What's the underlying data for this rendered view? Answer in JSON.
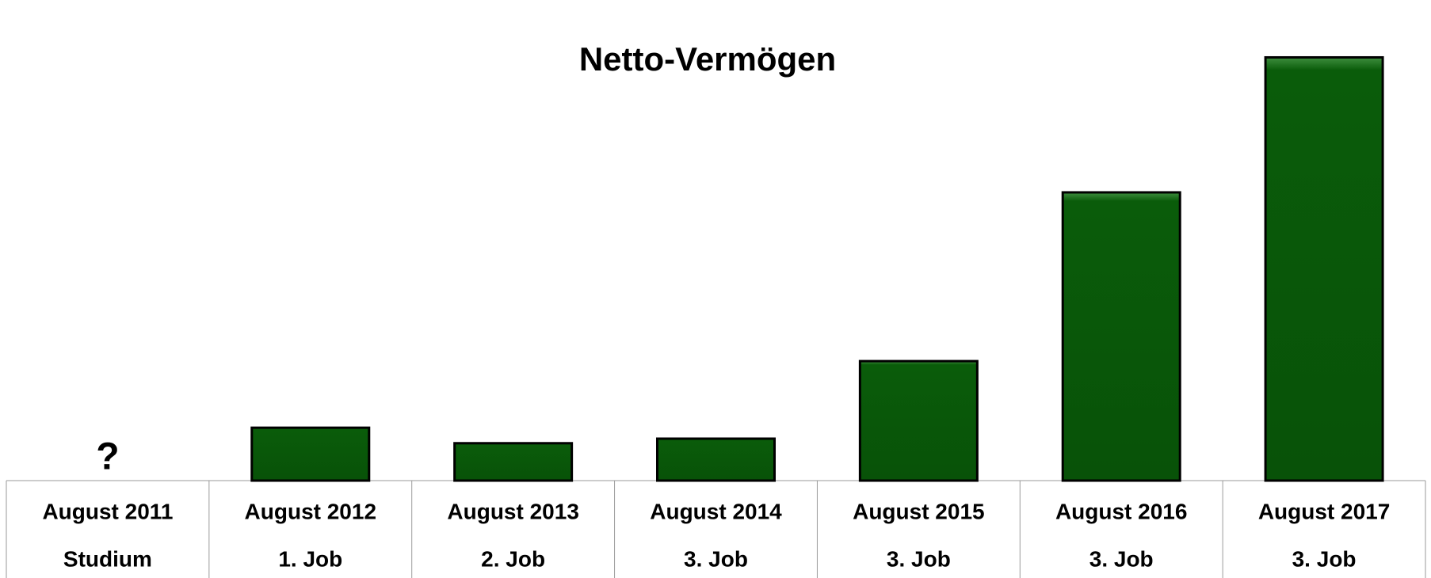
{
  "chart_data": {
    "type": "bar",
    "title": "Netto-Vermögen",
    "categories": [
      "August 2011",
      "August 2012",
      "August 2013",
      "August 2014",
      "August 2015",
      "August 2016",
      "August 2017"
    ],
    "category_sublabels": [
      "Studium",
      "1. Job",
      "2. Job",
      "3. Job",
      "3. Job",
      "3. Job",
      "3. Job"
    ],
    "values": [
      null,
      58,
      41,
      46,
      131,
      316,
      464
    ],
    "value_labels": [
      "?",
      null,
      null,
      null,
      null,
      null,
      null
    ],
    "color": "#0a5c0a",
    "ylim": [
      0,
      500
    ]
  }
}
